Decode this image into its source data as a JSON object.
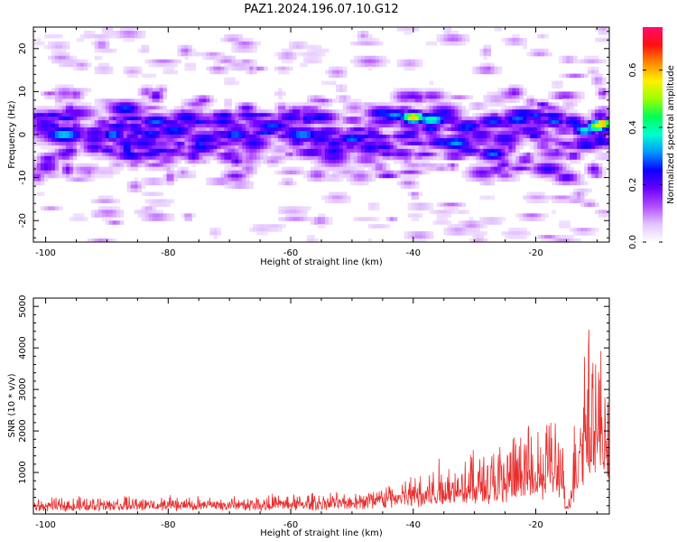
{
  "title": "PAZ1.2024.196.07.10.G12",
  "chart_data": [
    {
      "type": "heatmap",
      "xlabel": "Height of straight line (km)",
      "ylabel": "Frequency (Hz)",
      "xlim": [
        -102,
        -8
      ],
      "ylim": [
        -25,
        25
      ],
      "xticks": [
        -100,
        -80,
        -60,
        -40,
        -20
      ],
      "yticks": [
        -20,
        -10,
        0,
        10,
        20
      ],
      "colorbar": {
        "label": "Normalized spectral amplitude",
        "range": [
          0,
          0.75
        ],
        "ticks": [
          0.0,
          0.2,
          0.4,
          0.6
        ],
        "colors": [
          "#ffffff",
          "#e4c4ff",
          "#b24dff",
          "#6a00ff",
          "#0a00ff",
          "#0096ff",
          "#00ffd0",
          "#00ff55",
          "#9cff00",
          "#fff000",
          "#ff8a00",
          "#ff1010",
          "#ff0a70"
        ]
      },
      "description_values": "Energy concentrated near 0 Hz, spread within about ±10 Hz; peaks around -40 km (~4 Hz, amplitude ~0.6) and at -9 km (~2.5 Hz, amplitude ~0.75).",
      "blobs": [
        {
          "x": -100,
          "y": 2,
          "a": 0.22,
          "sx": 2.0,
          "sy": 2.5
        },
        {
          "x": -97,
          "y": 0,
          "a": 0.35,
          "sx": 2.5,
          "sy": 1.5
        },
        {
          "x": -95,
          "y": 5,
          "a": 0.2,
          "sx": 2.5,
          "sy": 1.2
        },
        {
          "x": -92,
          "y": -1,
          "a": 0.22,
          "sx": 2.0,
          "sy": 1.5
        },
        {
          "x": -89,
          "y": 0,
          "a": 0.32,
          "sx": 1.5,
          "sy": 1.2
        },
        {
          "x": -87,
          "y": 6,
          "a": 0.28,
          "sx": 2.0,
          "sy": 1.3
        },
        {
          "x": -84,
          "y": -2,
          "a": 0.24,
          "sx": 2.5,
          "sy": 1.4
        },
        {
          "x": -82,
          "y": 3,
          "a": 0.3,
          "sx": 2.0,
          "sy": 1.2
        },
        {
          "x": -79,
          "y": 1,
          "a": 0.27,
          "sx": 2.5,
          "sy": 1.5
        },
        {
          "x": -77,
          "y": 4,
          "a": 0.26,
          "sx": 2.0,
          "sy": 1.2
        },
        {
          "x": -74,
          "y": -1,
          "a": 0.25,
          "sx": 2.5,
          "sy": 1.4
        },
        {
          "x": -71,
          "y": 3,
          "a": 0.25,
          "sx": 2.0,
          "sy": 1.2
        },
        {
          "x": -69,
          "y": 0,
          "a": 0.3,
          "sx": 2.0,
          "sy": 1.3
        },
        {
          "x": -66,
          "y": -2,
          "a": 0.24,
          "sx": 2.0,
          "sy": 1.4
        },
        {
          "x": -63,
          "y": 2,
          "a": 0.28,
          "sx": 2.5,
          "sy": 1.2
        },
        {
          "x": -60,
          "y": 4,
          "a": 0.24,
          "sx": 2.0,
          "sy": 1.2
        },
        {
          "x": -58,
          "y": 0,
          "a": 0.32,
          "sx": 2.5,
          "sy": 1.3
        },
        {
          "x": -55,
          "y": -1,
          "a": 0.24,
          "sx": 2.0,
          "sy": 1.4
        },
        {
          "x": -53,
          "y": -5,
          "a": 0.22,
          "sx": 2.0,
          "sy": 1.8
        },
        {
          "x": -50,
          "y": -1,
          "a": 0.3,
          "sx": 2.0,
          "sy": 1.2
        },
        {
          "x": -47,
          "y": -3,
          "a": 0.24,
          "sx": 2.0,
          "sy": 1.5
        },
        {
          "x": -45,
          "y": 5,
          "a": 0.28,
          "sx": 2.0,
          "sy": 1.2
        },
        {
          "x": -43,
          "y": 4.5,
          "a": 0.32,
          "sx": 2.0,
          "sy": 1.2
        },
        {
          "x": -40,
          "y": 4,
          "a": 0.6,
          "sx": 1.5,
          "sy": 1.0
        },
        {
          "x": -37,
          "y": 3.5,
          "a": 0.4,
          "sx": 2.0,
          "sy": 1.2
        },
        {
          "x": -35,
          "y": 5,
          "a": 0.24,
          "sx": 2.0,
          "sy": 1.5
        },
        {
          "x": -33,
          "y": -2,
          "a": 0.32,
          "sx": 2.0,
          "sy": 1.3
        },
        {
          "x": -31,
          "y": 2,
          "a": 0.27,
          "sx": 2.0,
          "sy": 1.2
        },
        {
          "x": -29,
          "y": 0,
          "a": 0.22,
          "sx": 2.0,
          "sy": 1.3
        },
        {
          "x": -27,
          "y": 3,
          "a": 0.28,
          "sx": 2.0,
          "sy": 1.2
        },
        {
          "x": -27,
          "y": -4.5,
          "a": 0.3,
          "sx": 1.8,
          "sy": 1.2
        },
        {
          "x": -25,
          "y": -1,
          "a": 0.24,
          "sx": 2.0,
          "sy": 1.5
        },
        {
          "x": -23,
          "y": 3.5,
          "a": 0.3,
          "sx": 2.0,
          "sy": 1.2
        },
        {
          "x": -21,
          "y": 1,
          "a": 0.22,
          "sx": 2.0,
          "sy": 1.3
        },
        {
          "x": -20,
          "y": 4.5,
          "a": 0.28,
          "sx": 1.5,
          "sy": 1.0
        },
        {
          "x": -18,
          "y": -8,
          "a": 0.24,
          "sx": 2.0,
          "sy": 1.2
        },
        {
          "x": -17,
          "y": 3,
          "a": 0.3,
          "sx": 1.5,
          "sy": 1.0
        },
        {
          "x": -15,
          "y": -10,
          "a": 0.22,
          "sx": 1.5,
          "sy": 1.0
        },
        {
          "x": -14,
          "y": 3,
          "a": 0.26,
          "sx": 1.5,
          "sy": 1.2
        },
        {
          "x": -12,
          "y": 1,
          "a": 0.38,
          "sx": 1.5,
          "sy": 1.0
        },
        {
          "x": -10,
          "y": 2,
          "a": 0.55,
          "sx": 1.2,
          "sy": 1.0
        },
        {
          "x": -9,
          "y": 2.5,
          "a": 0.75,
          "sx": 1.0,
          "sy": 0.6
        }
      ]
    },
    {
      "type": "line",
      "xlabel": "Height of straight line (km)",
      "ylabel": "SNR (10 * v/v)",
      "xlim": [
        -102,
        -8
      ],
      "ylim": [
        0,
        5200
      ],
      "xticks": [
        -100,
        -80,
        -60,
        -40,
        -20
      ],
      "yticks": [
        1000,
        2000,
        3000,
        4000,
        5000
      ],
      "color": "#e8302f",
      "x_range": [
        -102,
        -8
      ],
      "samples": 1300,
      "envelope": [
        {
          "x": -102,
          "base": 150,
          "amp": 220
        },
        {
          "x": -90,
          "base": 180,
          "amp": 260
        },
        {
          "x": -75,
          "base": 170,
          "amp": 250
        },
        {
          "x": -60,
          "base": 200,
          "amp": 280
        },
        {
          "x": -50,
          "base": 250,
          "amp": 320
        },
        {
          "x": -42,
          "base": 350,
          "amp": 450
        },
        {
          "x": -35,
          "base": 450,
          "amp": 900
        },
        {
          "x": -28,
          "base": 550,
          "amp": 1100
        },
        {
          "x": -22,
          "base": 650,
          "amp": 1400
        },
        {
          "x": -18,
          "base": 800,
          "amp": 1900
        },
        {
          "x": -16,
          "base": 700,
          "amp": 1800
        },
        {
          "x": -15,
          "base": 150,
          "amp": 250
        },
        {
          "x": -14,
          "base": 400,
          "amp": 1500
        },
        {
          "x": -12.5,
          "base": 1600,
          "amp": 3300
        },
        {
          "x": -11,
          "base": 1900,
          "amp": 3200
        },
        {
          "x": -10,
          "base": 1600,
          "amp": 3000
        },
        {
          "x": -8.5,
          "base": 1400,
          "amp": 2200
        },
        {
          "x": -8,
          "base": 1200,
          "amp": 1500
        }
      ]
    }
  ]
}
